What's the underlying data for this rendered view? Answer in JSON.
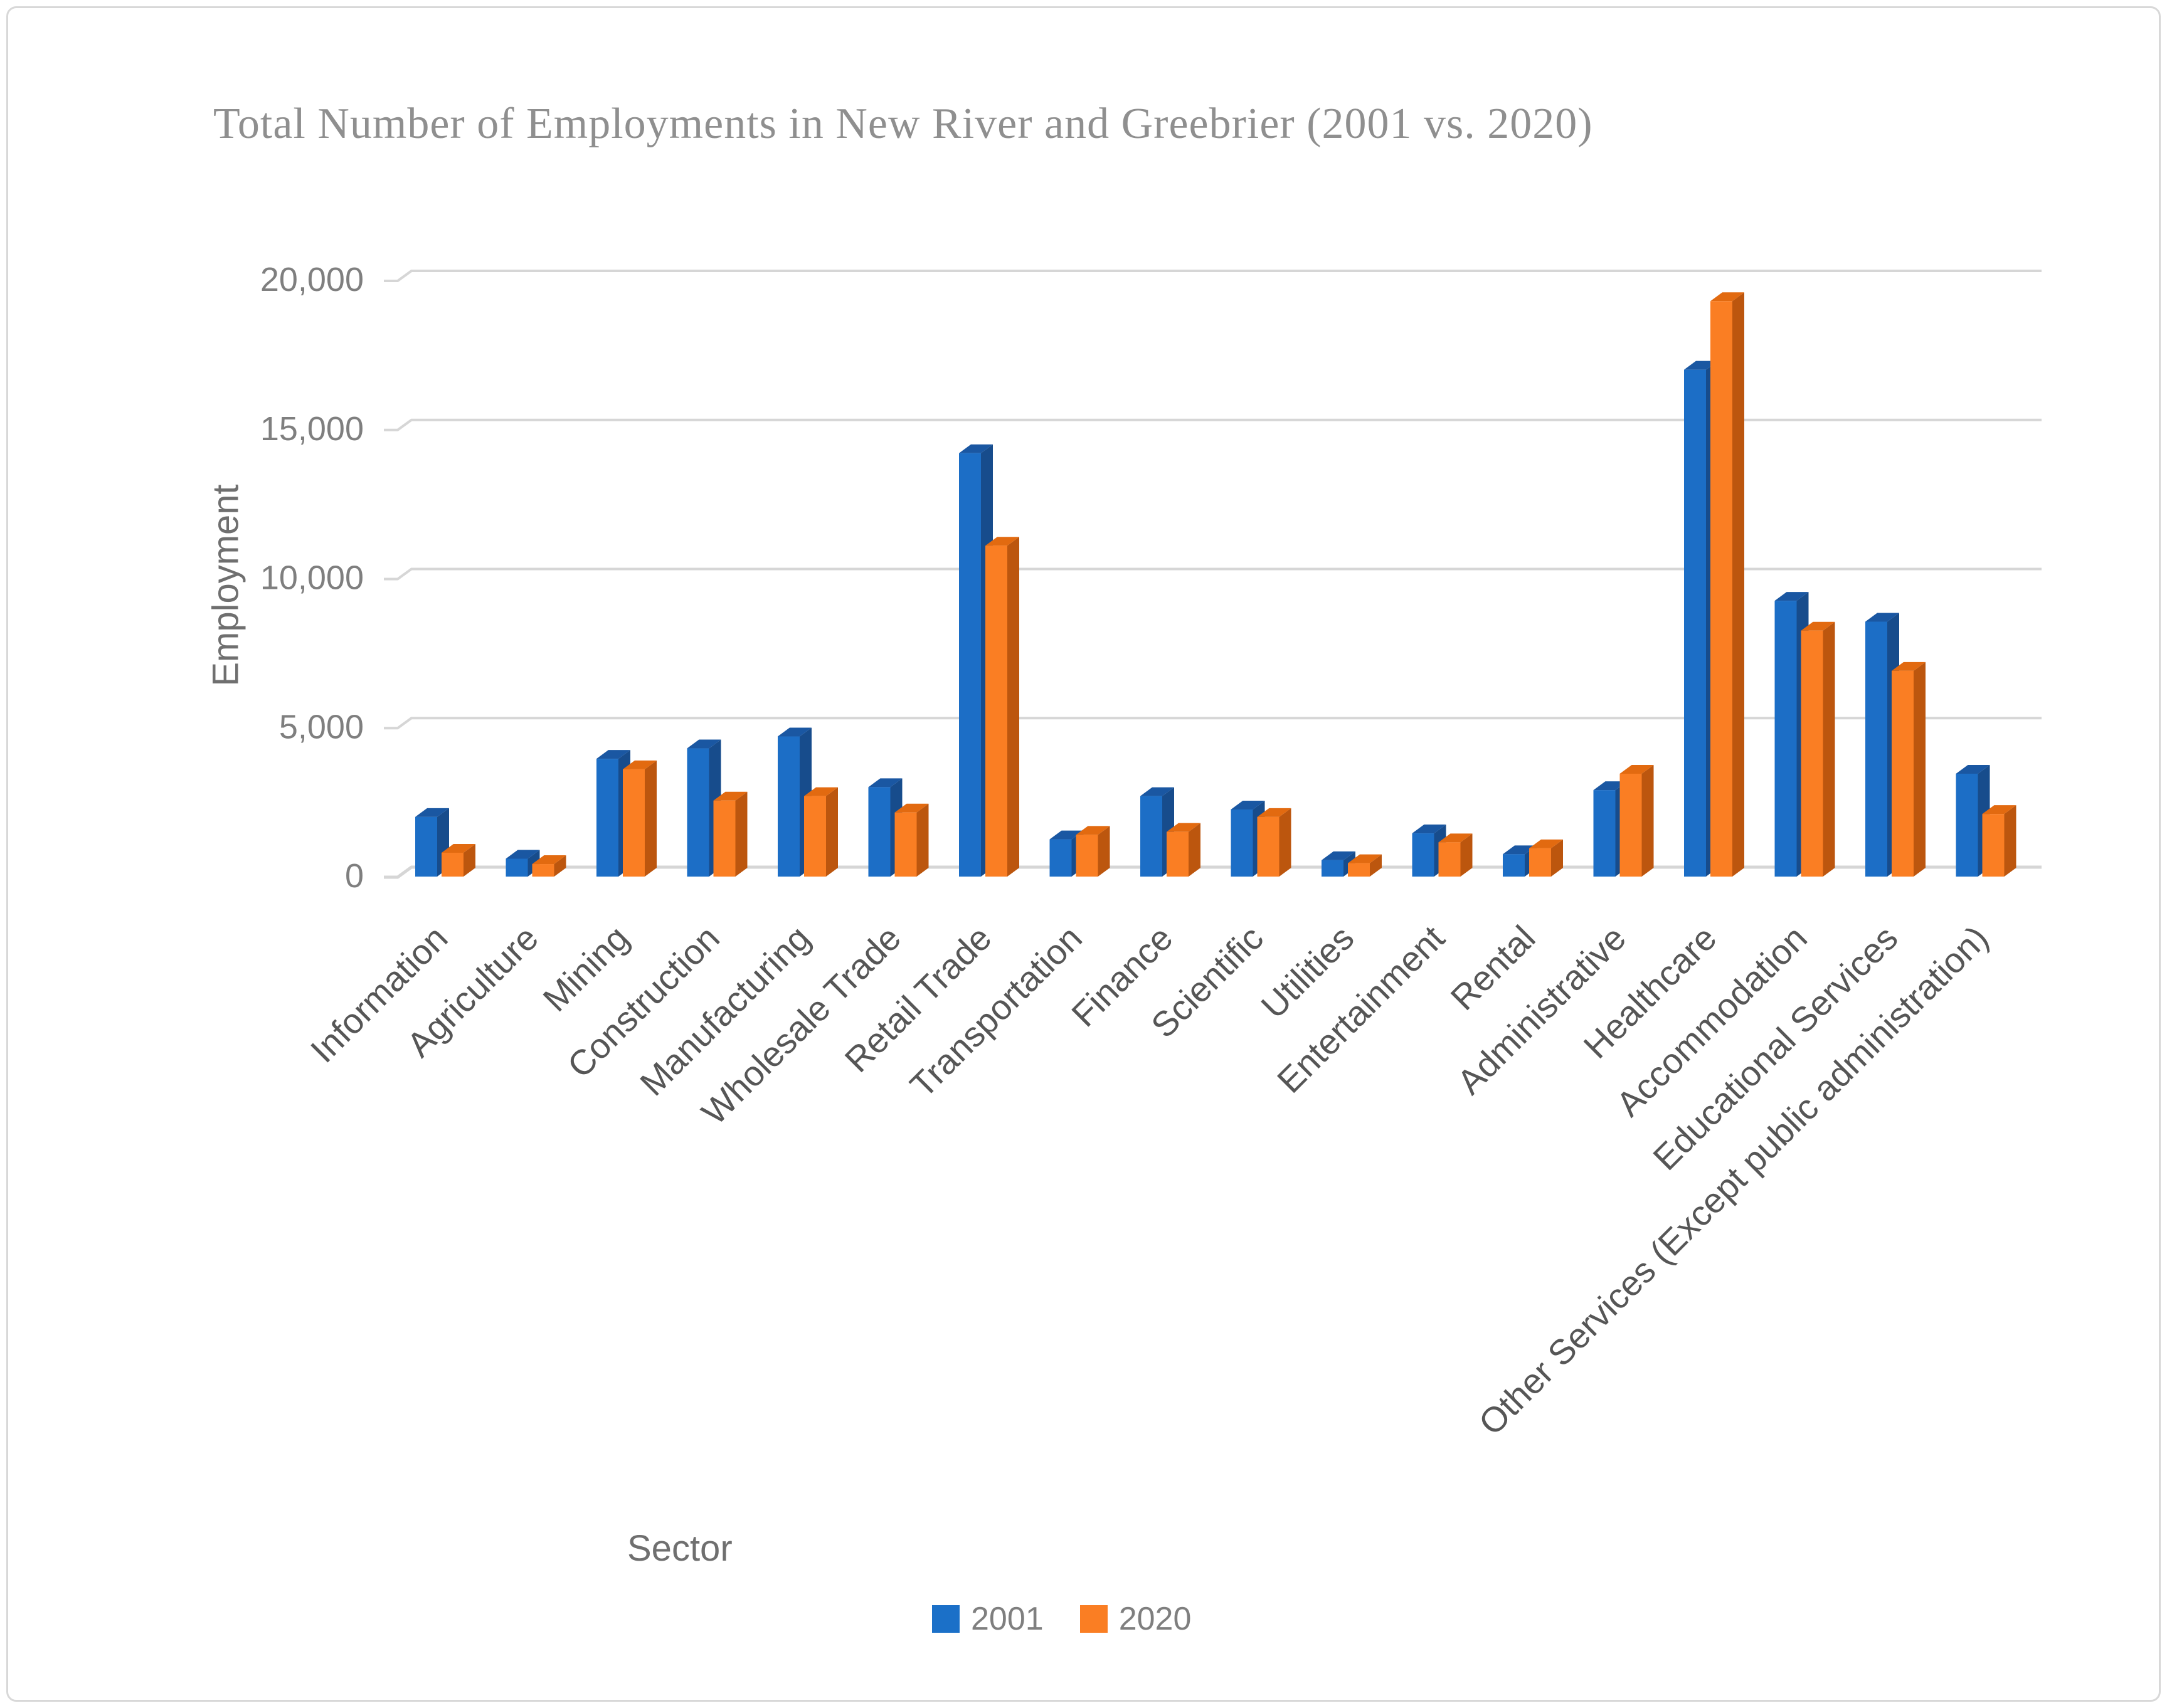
{
  "title": "Total Number of Employments in New River and Greebrier (2001 vs. 2020)",
  "y_axis": {
    "label": "Employment",
    "tick_labels": [
      "20,000",
      "15,000",
      "10,000",
      "5,000",
      "0"
    ],
    "tick_values": [
      20000,
      15000,
      10000,
      5000,
      0
    ]
  },
  "x_axis": {
    "label": "Sector"
  },
  "legend": {
    "items": [
      {
        "label": "2001",
        "color": "#1b70c8"
      },
      {
        "label": "2020",
        "color": "#fa7e23"
      }
    ]
  },
  "colors": {
    "series1_front": "#1c6ec6",
    "series1_top": "#1a57a2",
    "series1_side": "#174c8c",
    "series2_front": "#fa7e23",
    "series2_top": "#e26a10",
    "series2_side": "#bc560e",
    "gridline": "#d6d6d6",
    "tick_text": "#7f7f7f",
    "category_text": "#565656",
    "title_text": "#8f8f8f"
  },
  "chart_data": {
    "type": "bar",
    "style": "3d-clustered-column",
    "title": "Total Number of Employments in New River and Greebrier (2001 vs. 2020)",
    "xlabel": "Sector",
    "ylabel": "Employment",
    "ylim": [
      0,
      20000
    ],
    "ytick_step": 5000,
    "grid": "horizontal",
    "legend_position": "bottom",
    "categories": [
      "Information",
      "Agriculture",
      "Mining",
      "Construction",
      "Manufacturing",
      "Wholesale Trade",
      "Retail Trade",
      "Transportation",
      "Finance",
      "Scientific",
      "Utilities",
      "Entertainment",
      "Rental",
      "Administrative",
      "Healthcare",
      "Accommodation",
      "Educational Services",
      "Other Services (Except public administration)"
    ],
    "series": [
      {
        "name": "2001",
        "values": [
          2000,
          600,
          3950,
          4300,
          4700,
          3000,
          14200,
          1250,
          2700,
          2250,
          550,
          1450,
          750,
          2900,
          17000,
          9250,
          8550,
          3450
        ]
      },
      {
        "name": "2020",
        "values": [
          800,
          420,
          3600,
          2550,
          2700,
          2150,
          11100,
          1400,
          1500,
          2000,
          450,
          1150,
          950,
          3450,
          19300,
          8250,
          6900,
          2100
        ]
      }
    ]
  }
}
